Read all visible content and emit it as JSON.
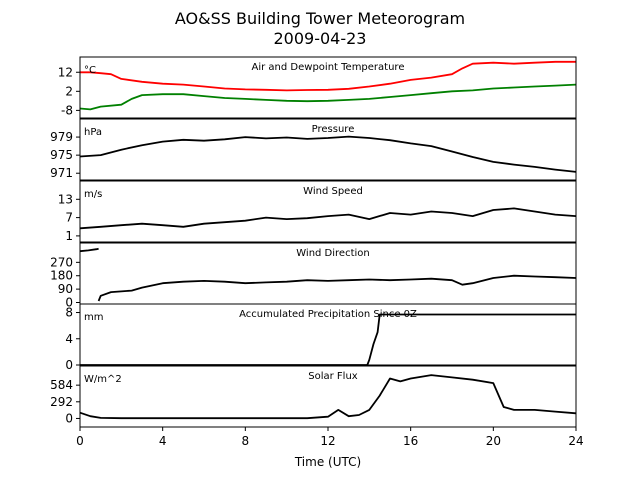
{
  "title": "AO&SS Building Tower Meteorogram",
  "subtitle": "2009-04-23",
  "chart_data": {
    "type": "line",
    "xlabel": "Time (UTC)",
    "xlim": [
      0,
      24
    ],
    "xticks": [
      0,
      4,
      8,
      12,
      16,
      20,
      24
    ],
    "panels": [
      {
        "title": "Air and Dewpoint Temperature",
        "unit": "°C",
        "ylim": [
          -12,
          20
        ],
        "yticks": [
          12,
          2,
          -8
        ],
        "series": [
          {
            "color": "#ff0000",
            "x": [
              0,
              0.5,
              1,
              1.5,
              2,
              3,
              4,
              5,
              6,
              7,
              8,
              9,
              10,
              11,
              12,
              13,
              14,
              15,
              16,
              17,
              18,
              18.5,
              19,
              20,
              21,
              22,
              23,
              24
            ],
            "y": [
              12,
              12,
              11.5,
              11,
              8.5,
              7,
              6,
              5.5,
              4.5,
              3.5,
              3,
              2.8,
              2.5,
              2.7,
              2.8,
              3.3,
              4.5,
              6,
              8,
              9.2,
              11,
              14,
              16.5,
              17,
              16.5,
              17,
              17.5,
              17.5
            ]
          },
          {
            "color": "#008000",
            "x": [
              0,
              0.5,
              1,
              2,
              2.5,
              3,
              4,
              5,
              6,
              7,
              8,
              9,
              10,
              11,
              12,
              13,
              14,
              15,
              16,
              17,
              18,
              19,
              20,
              21,
              22,
              23,
              24
            ],
            "y": [
              -7,
              -7.5,
              -6,
              -5,
              -2,
              0,
              0.5,
              0.5,
              -0.5,
              -1.5,
              -2,
              -2.5,
              -3,
              -3.2,
              -3,
              -2.5,
              -2,
              -1,
              0,
              1,
              2,
              2.5,
              3.5,
              4,
              4.5,
              5,
              5.5
            ]
          }
        ]
      },
      {
        "title": "Pressure",
        "unit": "hPa",
        "ylim": [
          969.5,
          983
        ],
        "yticks": [
          979,
          975,
          971
        ],
        "series": [
          {
            "color": "#000000",
            "x": [
              0,
              1,
              2,
              3,
              4,
              5,
              6,
              7,
              8,
              9,
              10,
              11,
              12,
              13,
              14,
              15,
              16,
              17,
              18,
              19,
              20,
              21,
              22,
              23,
              24
            ],
            "y": [
              974.7,
              975,
              976.2,
              977.2,
              978,
              978.4,
              978.2,
              978.5,
              979,
              978.7,
              978.9,
              978.6,
              978.8,
              979.1,
              978.8,
              978.3,
              977.6,
              977,
              975.8,
              974.6,
              973.5,
              972.9,
              972.4,
              971.8,
              971.3
            ]
          }
        ]
      },
      {
        "title": "Wind Speed",
        "unit": "m/s",
        "ylim": [
          -1,
          19
        ],
        "yticks": [
          13,
          7,
          1
        ],
        "series": [
          {
            "color": "#000000",
            "x": [
              0,
              1,
              2,
              3,
              4,
              5,
              6,
              7,
              8,
              9,
              10,
              11,
              12,
              13,
              14,
              15,
              16,
              17,
              18,
              19,
              20,
              21,
              22,
              23,
              24
            ],
            "y": [
              3.5,
              4,
              4.5,
              5,
              4.5,
              4,
              5,
              5.5,
              6,
              7,
              6.5,
              6.8,
              7.5,
              8,
              6.5,
              8.5,
              8,
              9,
              8.5,
              7.5,
              9.5,
              10,
              9,
              8,
              7.5
            ]
          }
        ]
      },
      {
        "title": "Wind Direction",
        "unit": "",
        "ylim": [
          -10,
          400
        ],
        "yticks": [
          270,
          180,
          90,
          0
        ],
        "series": [
          {
            "color": "#000000",
            "x": [
              0,
              0.4,
              0.8,
              0.9
            ],
            "y": [
              345,
              350,
              358,
              362
            ]
          },
          {
            "color": "#000000",
            "x": [
              0.9,
              1,
              1.5,
              2,
              2.5,
              3,
              4,
              5,
              6,
              7,
              8,
              9,
              10,
              11,
              12,
              13,
              14,
              15,
              16,
              17,
              18,
              18.5,
              19,
              20,
              21,
              22,
              23,
              24
            ],
            "y": [
              10,
              45,
              70,
              75,
              80,
              100,
              130,
              140,
              145,
              140,
              130,
              135,
              140,
              150,
              145,
              150,
              155,
              150,
              155,
              160,
              150,
              120,
              130,
              165,
              180,
              175,
              170,
              165
            ]
          }
        ]
      },
      {
        "title": "Accumulated Precipitation Since 0Z",
        "unit": "mm",
        "ylim": [
          0,
          9.3
        ],
        "yticks": [
          8,
          4,
          0
        ],
        "series": [
          {
            "color": "#000000",
            "x": [
              0,
              13.9,
              14,
              14.2,
              14.4,
              14.5,
              24
            ],
            "y": [
              0,
              0,
              0.8,
              3.2,
              5,
              7.7,
              7.7
            ]
          }
        ]
      },
      {
        "title": "Solar Flux",
        "unit": "W/m^2",
        "ylim": [
          -150,
          920
        ],
        "yticks": [
          584,
          292,
          0
        ],
        "series": [
          {
            "color": "#000000",
            "x": [
              0,
              0.5,
              1,
              2,
              4,
              6,
              8,
              10,
              11,
              12,
              12.5,
              13,
              13.5,
              14,
              14.5,
              15,
              15.5,
              16,
              17,
              18,
              19,
              20,
              20.5,
              21,
              22,
              23,
              24
            ],
            "y": [
              100,
              40,
              10,
              5,
              5,
              5,
              5,
              5,
              5,
              30,
              150,
              40,
              60,
              150,
              400,
              700,
              650,
              700,
              760,
              720,
              680,
              620,
              200,
              150,
              150,
              120,
              90
            ]
          }
        ]
      }
    ]
  }
}
